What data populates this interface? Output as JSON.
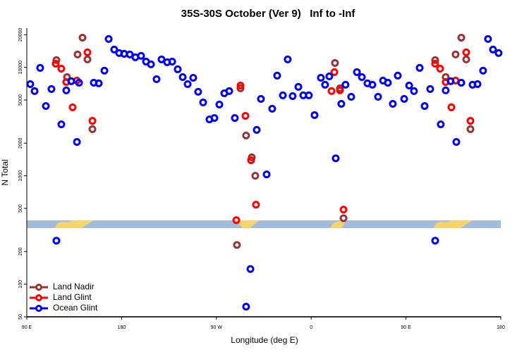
{
  "chart_data": {
    "type": "scatter",
    "title": "35S-30S October (Ver 9)   Inf to -Inf",
    "x_label": "Longitude (deg E)",
    "y_label": "N Total",
    "xlim": [
      90,
      540
    ],
    "xticks": [
      {
        "value": 90,
        "label": "90 E"
      },
      180,
      {
        "value": 270,
        "label": "90 W"
      },
      {
        "value": 360,
        "label": "0"
      },
      {
        "value": 450,
        "label": "90 E"
      },
      {
        "value": 540,
        "label": "180"
      }
    ],
    "ylim": [
      50,
      23000
    ],
    "y_scale": "log",
    "yticks": [
      50,
      100,
      200,
      500,
      1000,
      2000,
      5000,
      10000,
      20000
    ],
    "legend": "bottom-left",
    "series": [
      {
        "name": "Land Nadir",
        "color": "#993333",
        "x": [
          118.1,
          128.2,
          138.2,
          142.9,
          147.6,
          152.3,
          292.9,
          298.2,
          303.6,
          306.9,
          289.5,
          382.6,
          387.3,
          390.7,
          477.7,
          487.7,
          497.1,
          502.5,
          507.2,
          511.2
        ],
        "values": [
          11670,
          8140,
          13150,
          18800,
          11840,
          2690,
          6410,
          2350,
          1480,
          1000,
          230,
          10980,
          6410,
          406,
          11670,
          8140,
          13150,
          18800,
          11840,
          2690
        ]
      },
      {
        "name": "Land Glint",
        "color": "#ff0000",
        "x": [
          117.5,
          122.8,
          127.5,
          133.5,
          137.6,
          147.6,
          152.3,
          292.9,
          297.6,
          302.9,
          307.6,
          288.9,
          379.3,
          382.0,
          387.3,
          390.7,
          477.7,
          482.4,
          487.7,
          493.1,
          497.1,
          507.2,
          511.2
        ],
        "values": [
          10810,
          9740,
          7330,
          4280,
          7550,
          13750,
          3210,
          6800,
          3570,
          1390,
          541,
          389,
          6040,
          9040,
          6130,
          487,
          10810,
          9740,
          7330,
          4280,
          7550,
          13750,
          3210
        ]
      },
      {
        "name": "Ocean Glint",
        "color": "#0000ee",
        "x": [
          93.3,
          97.4,
          102.7,
          108.1,
          113.4,
          118.1,
          122.8,
          127.5,
          132.2,
          137.6,
          139.6,
          153.6,
          158.3,
          163.7,
          167.7,
          173.0,
          177.7,
          182.4,
          187.8,
          193.1,
          198.5,
          203.2,
          207.9,
          213.2,
          217.9,
          223.3,
          228.0,
          233.3,
          238.0,
          242.7,
          248.0,
          252.7,
          257.4,
          263.4,
          268.1,
          272.8,
          277.5,
          282.2,
          287.5,
          298.2,
          302.3,
          308.3,
          312.3,
          317.7,
          323.0,
          327.7,
          333.1,
          337.7,
          342.4,
          347.8,
          352.5,
          357.8,
          363.2,
          369.2,
          373.2,
          377.2,
          383.3,
          388.6,
          392.6,
          398.0,
          403.4,
          408.1,
          413.4,
          418.1,
          423.5,
          428.2,
          432.8,
          437.5,
          442.2,
          448.3,
          453.0,
          457.6,
          463.0,
          467.7,
          473.0,
          477.7,
          483.0,
          487.7,
          492.4,
          497.8,
          502.5,
          513.2,
          517.9,
          523.2,
          527.9,
          532.6,
          537.9
        ],
        "values": [
          7010,
          6040,
          9890,
          4400,
          6310,
          252,
          2980,
          6130,
          7450,
          2050,
          7220,
          7220,
          7120,
          9320,
          18280,
          14600,
          13550,
          13340,
          13150,
          12390,
          12760,
          11310,
          10660,
          7780,
          11840,
          11150,
          11310,
          9600,
          8140,
          7010,
          8020,
          5950,
          4750,
          3310,
          3410,
          4540,
          5770,
          6040,
          3410,
          62,
          138,
          2650,
          5120,
          1030,
          4150,
          8390,
          5520,
          11840,
          5430,
          6610,
          5520,
          5520,
          3630,
          8020,
          6910,
          8260,
          1450,
          4610,
          6910,
          5350,
          9040,
          8140,
          7120,
          6910,
          5350,
          7550,
          7220,
          4610,
          8390,
          5120,
          6800,
          6040,
          9890,
          4400,
          6310,
          252,
          2980,
          6130,
          7450,
          2050,
          7220,
          6910,
          7010,
          9320,
          18280,
          14600,
          13550
        ]
      }
    ]
  }
}
